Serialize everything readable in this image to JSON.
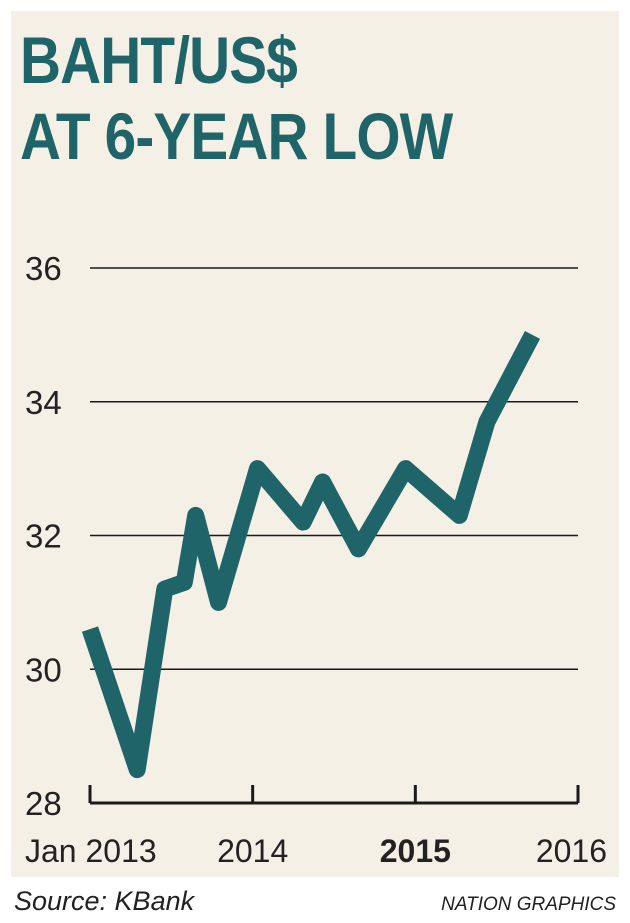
{
  "chart_data": {
    "type": "line",
    "title": "BAHT/US$",
    "subtitle": "AT 6-YEAR LOW",
    "ylim": [
      28,
      36
    ],
    "y_ticks": [
      "36",
      "34",
      "32",
      "30",
      "28"
    ],
    "y_tick_values": [
      36,
      34,
      32,
      30,
      28
    ],
    "x_ticks": [
      {
        "label": "Jan 2013",
        "value": 2013.0,
        "bold": false
      },
      {
        "label": "2014",
        "value": 2014.0,
        "bold": false
      },
      {
        "label": "2015",
        "value": 2015.0,
        "bold": true
      },
      {
        "label": "2016",
        "value": 2016.0,
        "bold": false
      }
    ],
    "xlim": [
      2013.0,
      2016.0
    ],
    "grid": true,
    "line_color": "#1f6468",
    "series": [
      {
        "points": [
          {
            "x": 2013.0,
            "y": 30.6
          },
          {
            "x": 2013.29,
            "y": 28.5
          },
          {
            "x": 2013.46,
            "y": 31.2
          },
          {
            "x": 2013.58,
            "y": 31.3
          },
          {
            "x": 2013.65,
            "y": 32.3
          },
          {
            "x": 2013.79,
            "y": 31.0
          },
          {
            "x": 2014.03,
            "y": 33.0
          },
          {
            "x": 2014.31,
            "y": 32.2
          },
          {
            "x": 2014.43,
            "y": 32.8
          },
          {
            "x": 2014.65,
            "y": 31.8
          },
          {
            "x": 2014.94,
            "y": 33.0
          },
          {
            "x": 2015.27,
            "y": 32.3
          },
          {
            "x": 2015.44,
            "y": 33.7
          },
          {
            "x": 2015.72,
            "y": 35.0
          }
        ]
      }
    ]
  },
  "source": "Source: KBank",
  "credit": "NATION GRAPHICS"
}
